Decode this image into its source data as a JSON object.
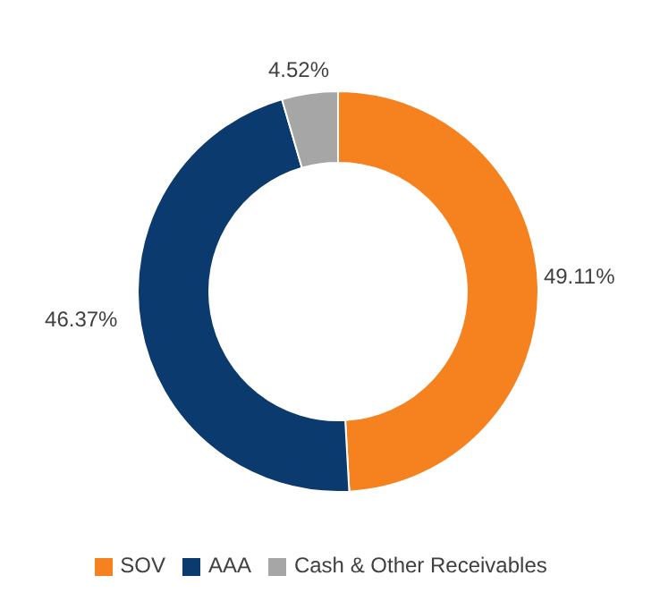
{
  "chart_data": {
    "type": "donut",
    "categories": [
      "SOV",
      "AAA",
      "Cash & Other Receivables"
    ],
    "values": [
      49.11,
      46.37,
      4.52
    ],
    "colors": [
      "#f5821f",
      "#0b3a6e",
      "#a6a6a6"
    ],
    "value_labels": [
      "49.11%",
      "46.37%",
      "4.52%"
    ],
    "legend": "bottom"
  }
}
